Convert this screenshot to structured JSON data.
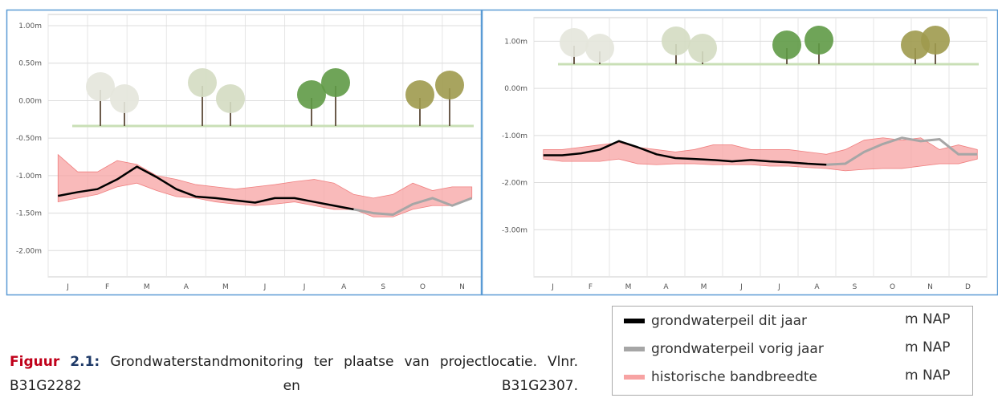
{
  "chart_data": [
    {
      "type": "line",
      "categories": [
        "J",
        null,
        "F",
        null,
        "M",
        null,
        "A",
        null,
        "M",
        null,
        "J",
        null,
        "J",
        null,
        "A",
        null,
        "S",
        null,
        "O",
        null,
        "N",
        null
      ],
      "ylim": [
        -2.35,
        1.15
      ],
      "yticks": [
        {
          "value": 1,
          "label": "1.00m"
        },
        {
          "value": 0.5,
          "label": "0.50m"
        },
        {
          "value": 0,
          "label": "0.00m"
        },
        {
          "value": -0.5,
          "label": "-0.50m"
        },
        {
          "value": -1,
          "label": "-1.00m"
        },
        {
          "value": -1.5,
          "label": "-1.50m"
        },
        {
          "value": -2,
          "label": "-2.00m"
        }
      ],
      "grid": true,
      "series": [
        {
          "name": "grondwaterpeil dit jaar",
          "color": "#000000",
          "values": [
            -1.27,
            -1.22,
            -1.18,
            -1.05,
            -0.88,
            -1.02,
            -1.18,
            -1.28,
            -1.3,
            -1.33,
            -1.36,
            -1.3,
            -1.3,
            -1.35,
            -1.4,
            -1.45,
            null,
            null,
            null,
            null,
            null,
            null
          ]
        },
        {
          "name": "grondwaterpeil vorig jaar",
          "color": "#a6a6a6",
          "values": [
            null,
            null,
            null,
            null,
            null,
            null,
            null,
            null,
            null,
            null,
            null,
            null,
            null,
            null,
            null,
            -1.45,
            -1.5,
            -1.52,
            -1.38,
            -1.3,
            -1.4,
            -1.3
          ]
        },
        {
          "name": "historische bandbreedte",
          "color": "#f7a3a3",
          "high": [
            -0.72,
            -0.95,
            -0.95,
            -0.8,
            -0.85,
            -1.0,
            -1.05,
            -1.12,
            -1.15,
            -1.18,
            -1.15,
            -1.12,
            -1.08,
            -1.05,
            -1.1,
            -1.25,
            -1.3,
            -1.25,
            -1.1,
            -1.2,
            -1.15,
            -1.15
          ],
          "low": [
            -1.35,
            -1.3,
            -1.25,
            -1.15,
            -1.1,
            -1.2,
            -1.28,
            -1.3,
            -1.35,
            -1.38,
            -1.4,
            -1.38,
            -1.35,
            -1.4,
            -1.45,
            -1.45,
            -1.55,
            -1.55,
            -1.45,
            -1.4,
            -1.4,
            -1.3
          ]
        }
      ]
    },
    {
      "type": "line",
      "categories": [
        "J",
        null,
        "F",
        null,
        "M",
        null,
        "A",
        null,
        "M",
        null,
        "J",
        null,
        "J",
        null,
        "A",
        null,
        "S",
        null,
        "O",
        null,
        "N",
        null,
        "D",
        null
      ],
      "ylim": [
        -4.0,
        1.5
      ],
      "yticks": [
        {
          "value": 1,
          "label": "1.00m"
        },
        {
          "value": 0,
          "label": "0.00m"
        },
        {
          "value": -1,
          "label": "-1.00m"
        },
        {
          "value": -2,
          "label": "-2.00m"
        },
        {
          "value": -3,
          "label": "-3.00m"
        }
      ],
      "grid": true,
      "series": [
        {
          "name": "grondwaterpeil dit jaar",
          "color": "#000000",
          "values": [
            -1.42,
            -1.42,
            -1.38,
            -1.3,
            -1.12,
            -1.25,
            -1.4,
            -1.48,
            -1.5,
            -1.52,
            -1.55,
            -1.52,
            -1.55,
            -1.57,
            -1.6,
            -1.62,
            null,
            null,
            null,
            null,
            null,
            null,
            null,
            null
          ]
        },
        {
          "name": "grondwaterpeil vorig jaar",
          "color": "#a6a6a6",
          "values": [
            null,
            null,
            null,
            null,
            null,
            null,
            null,
            null,
            null,
            null,
            null,
            null,
            null,
            null,
            null,
            -1.62,
            -1.6,
            -1.35,
            -1.18,
            -1.05,
            -1.12,
            -1.08,
            -1.4,
            -1.4
          ]
        },
        {
          "name": "historische bandbreedte",
          "color": "#f7a3a3",
          "high": [
            -1.3,
            -1.3,
            -1.25,
            -1.2,
            -1.15,
            -1.25,
            -1.3,
            -1.35,
            -1.3,
            -1.2,
            -1.2,
            -1.3,
            -1.3,
            -1.3,
            -1.35,
            -1.4,
            -1.3,
            -1.1,
            -1.05,
            -1.1,
            -1.05,
            -1.3,
            -1.2,
            -1.3
          ],
          "low": [
            -1.5,
            -1.55,
            -1.55,
            -1.55,
            -1.5,
            -1.6,
            -1.62,
            -1.6,
            -1.6,
            -1.62,
            -1.62,
            -1.62,
            -1.65,
            -1.65,
            -1.68,
            -1.7,
            -1.75,
            -1.72,
            -1.7,
            -1.7,
            -1.65,
            -1.6,
            -1.6,
            -1.5
          ]
        }
      ]
    }
  ],
  "legend_unit": "m NAP",
  "caption": {
    "label": "Figuur",
    "number": "2.1:",
    "text": "Grondwaterstandmonitoring ter plaatse van projectlocatie. Vlnr. B31G2282 en B31G2307."
  }
}
